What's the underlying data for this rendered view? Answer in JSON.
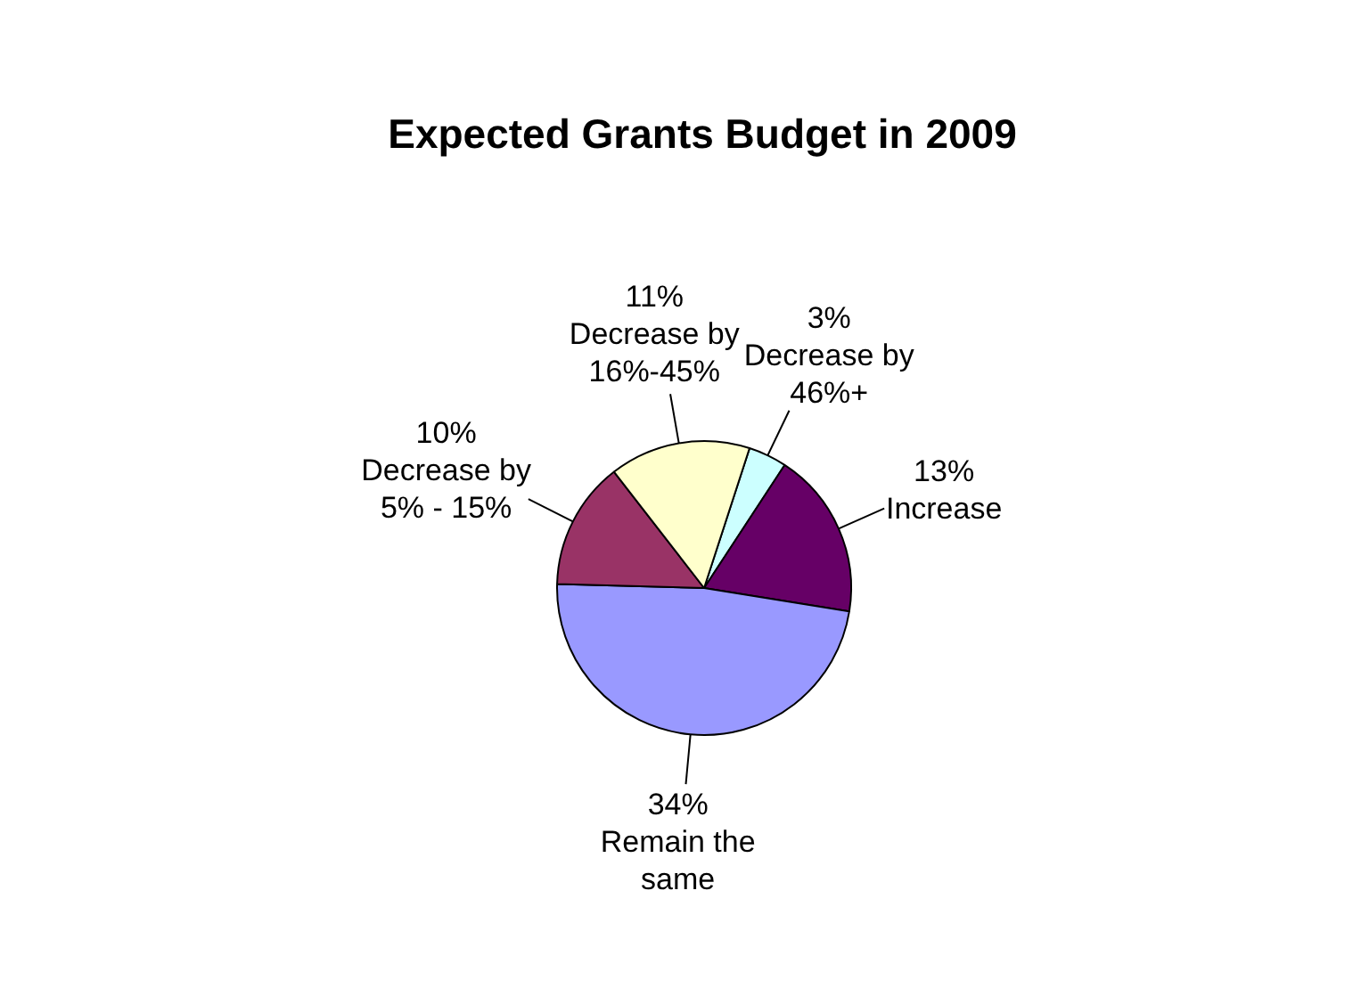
{
  "chart_data": {
    "type": "pie",
    "title": "Expected Grants Budget in 2009",
    "categories": [
      "Decrease by 46%+",
      "Increase",
      "Remain the same",
      "Decrease by 5% - 15%",
      "Decrease by 16%-45%"
    ],
    "values": [
      3,
      13,
      34,
      10,
      11
    ],
    "value_labels": [
      "3%",
      "13%",
      "34%",
      "10%",
      "11%"
    ],
    "colors": [
      "#ccffff",
      "#660066",
      "#9999ff",
      "#993366",
      "#ffffcc"
    ],
    "legend": false
  }
}
